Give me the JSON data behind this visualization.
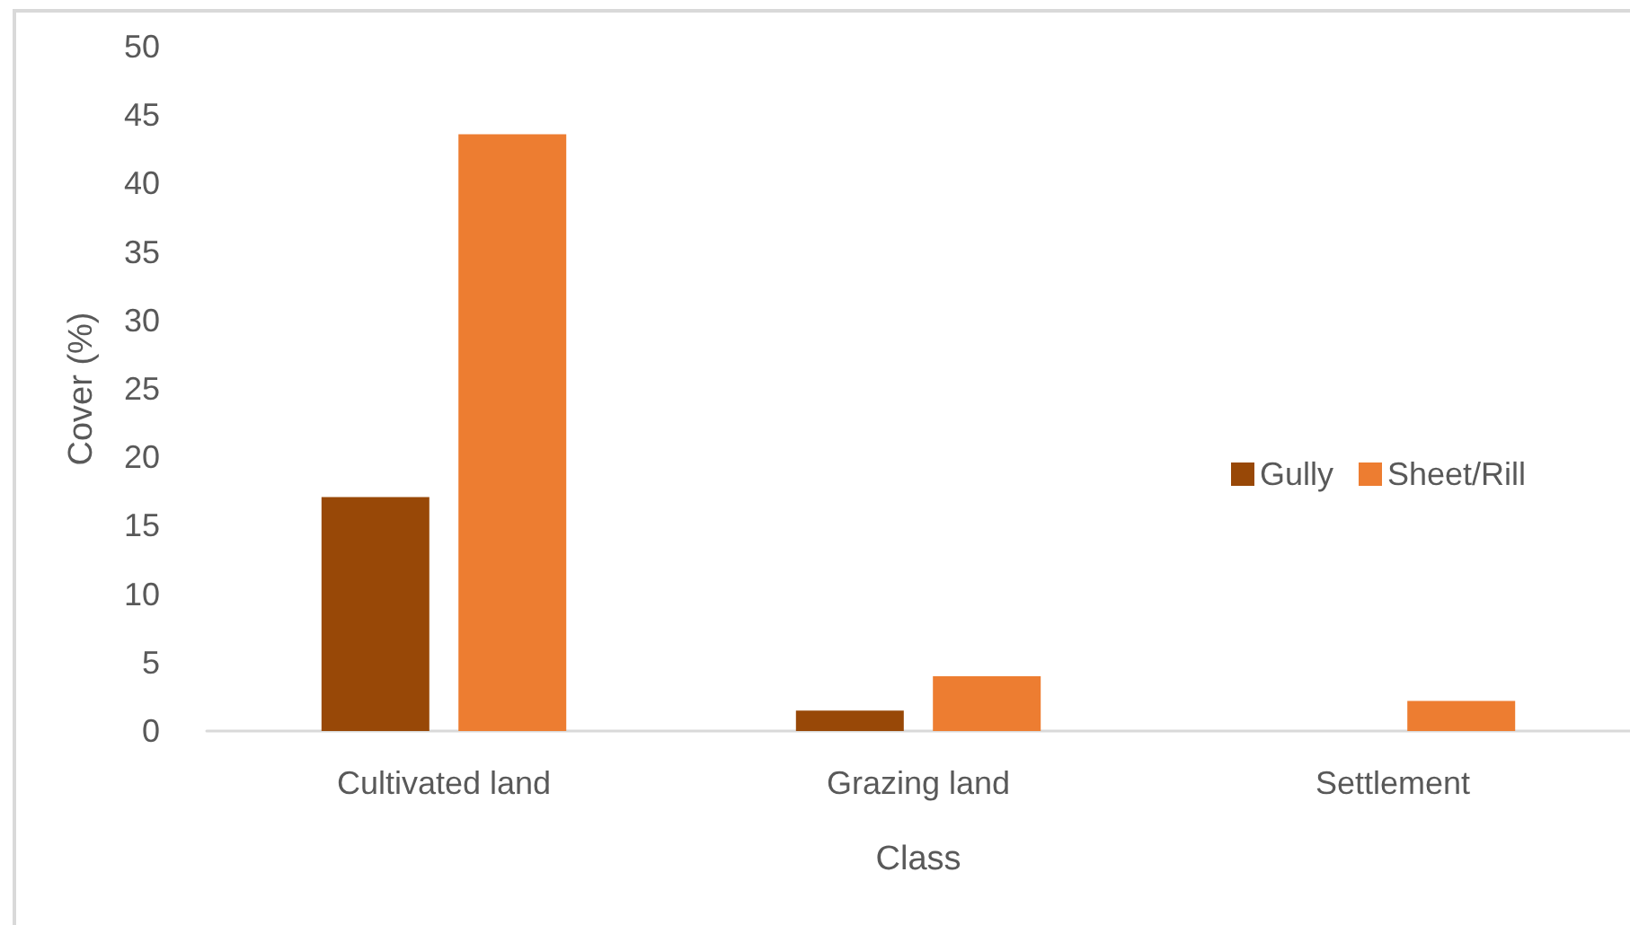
{
  "chart_data": {
    "type": "bar",
    "xlabel": "Class",
    "ylabel": "Cover (%)",
    "categories": [
      "Cultivated land",
      "Grazing land",
      "Settlement"
    ],
    "series": [
      {
        "name": "Gully",
        "color": "#984807",
        "values": [
          17.1,
          1.5,
          null
        ]
      },
      {
        "name": "Sheet/Rill",
        "color": "#ed7d31",
        "values": [
          43.6,
          4.0,
          2.2
        ]
      }
    ],
    "ylim": [
      0,
      50
    ],
    "yticks": [
      0,
      5,
      10,
      15,
      20,
      25,
      30,
      35,
      40,
      45,
      50
    ],
    "grid": false,
    "legend": "right"
  }
}
